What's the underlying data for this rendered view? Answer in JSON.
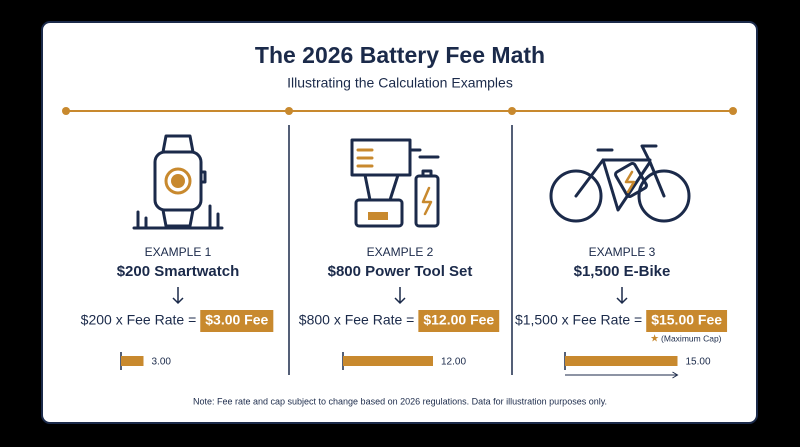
{
  "header": {
    "title": "The 2026 Battery Fee Math",
    "subtitle": "Illustrating the Calculation Examples"
  },
  "examples": [
    {
      "label": "EXAMPLE 1",
      "item": "$200 Smartwatch",
      "formula": "$200 x Fee Rate =",
      "fee": "$3.00 Fee",
      "bar": {
        "value": 3,
        "label": "3.00"
      }
    },
    {
      "label": "EXAMPLE 2",
      "item": "$800 Power Tool Set",
      "formula": "$800 x Fee Rate =",
      "fee": "$12.00 Fee",
      "bar": {
        "value": 12,
        "label": "12.00"
      }
    },
    {
      "label": "EXAMPLE 3",
      "item": "$1,500 E-Bike",
      "formula": "$1,500 x Fee Rate =",
      "fee": "$15.00 Fee",
      "bar": {
        "value": 15,
        "label": "15.00"
      },
      "cap_note": "(Maximum Cap)"
    }
  ],
  "note": "Note: Fee rate and cap subject to change based on 2026 regulations. Data for illustration purposes only."
}
